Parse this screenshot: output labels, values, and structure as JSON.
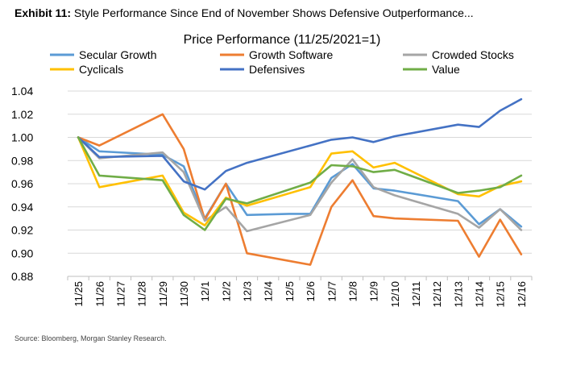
{
  "header": {
    "exhibit_label": "Exhibit 11:",
    "exhibit_title": "Style Performance Since End of November Shows Defensive Outperformance..."
  },
  "source": "Source: Bloomberg, Morgan Stanley Research.",
  "chart_data": {
    "type": "line",
    "title": "Price Performance (11/25/2021=1)",
    "xlabel": "",
    "ylabel": "",
    "ylim": [
      0.88,
      1.04
    ],
    "yticks": [
      "0.88",
      "0.90",
      "0.92",
      "0.94",
      "0.96",
      "0.98",
      "1.00",
      "1.02",
      "1.04"
    ],
    "ytick_values": [
      0.88,
      0.9,
      0.92,
      0.94,
      0.96,
      0.98,
      1.0,
      1.02,
      1.04
    ],
    "categories": [
      "11/25",
      "11/26",
      "11/27",
      "11/28",
      "11/29",
      "11/30",
      "12/1",
      "12/2",
      "12/3",
      "12/4",
      "12/5",
      "12/6",
      "12/7",
      "12/8",
      "12/9",
      "12/10",
      "12/11",
      "12/12",
      "12/13",
      "12/14",
      "12/15",
      "12/16"
    ],
    "legend_position": "top",
    "series": [
      {
        "name": "Secular Growth",
        "color": "#5B9BD5",
        "points": [
          [
            0,
            1.0
          ],
          [
            1,
            0.988
          ],
          [
            4,
            0.985
          ],
          [
            5,
            0.975
          ],
          [
            6,
            0.93
          ],
          [
            7,
            0.96
          ],
          [
            8,
            0.933
          ],
          [
            10,
            0.934
          ],
          [
            11,
            0.934
          ],
          [
            12,
            0.965
          ],
          [
            13,
            0.977
          ],
          [
            14,
            0.956
          ],
          [
            15,
            0.954
          ],
          [
            18,
            0.945
          ],
          [
            19,
            0.925
          ],
          [
            20,
            0.938
          ],
          [
            21,
            0.923
          ]
        ]
      },
      {
        "name": "Growth Software",
        "color": "#ED7D31",
        "points": [
          [
            0,
            1.0
          ],
          [
            1,
            0.993
          ],
          [
            4,
            1.02
          ],
          [
            5,
            0.99
          ],
          [
            6,
            0.929
          ],
          [
            7,
            0.96
          ],
          [
            8,
            0.9
          ],
          [
            11,
            0.89
          ],
          [
            12,
            0.94
          ],
          [
            13,
            0.963
          ],
          [
            14,
            0.932
          ],
          [
            15,
            0.93
          ],
          [
            18,
            0.928
          ],
          [
            19,
            0.897
          ],
          [
            20,
            0.929
          ],
          [
            21,
            0.899
          ]
        ]
      },
      {
        "name": "Crowded Stocks",
        "color": "#A5A5A5",
        "points": [
          [
            0,
            1.0
          ],
          [
            1,
            0.982
          ],
          [
            4,
            0.987
          ],
          [
            5,
            0.97
          ],
          [
            6,
            0.928
          ],
          [
            7,
            0.94
          ],
          [
            8,
            0.919
          ],
          [
            11,
            0.933
          ],
          [
            12,
            0.961
          ],
          [
            13,
            0.981
          ],
          [
            14,
            0.957
          ],
          [
            15,
            0.95
          ],
          [
            18,
            0.934
          ],
          [
            19,
            0.922
          ],
          [
            20,
            0.938
          ],
          [
            21,
            0.92
          ]
        ]
      },
      {
        "name": "Cyclicals",
        "color": "#FFC000",
        "points": [
          [
            0,
            1.0
          ],
          [
            1,
            0.957
          ],
          [
            4,
            0.967
          ],
          [
            5,
            0.935
          ],
          [
            6,
            0.924
          ],
          [
            7,
            0.948
          ],
          [
            8,
            0.941
          ],
          [
            11,
            0.957
          ],
          [
            12,
            0.986
          ],
          [
            13,
            0.988
          ],
          [
            14,
            0.974
          ],
          [
            15,
            0.978
          ],
          [
            18,
            0.951
          ],
          [
            19,
            0.949
          ],
          [
            20,
            0.958
          ],
          [
            21,
            0.962
          ]
        ]
      },
      {
        "name": "Defensives",
        "color": "#4472C4",
        "points": [
          [
            0,
            1.0
          ],
          [
            1,
            0.983
          ],
          [
            4,
            0.984
          ],
          [
            5,
            0.962
          ],
          [
            6,
            0.955
          ],
          [
            7,
            0.971
          ],
          [
            8,
            0.978
          ],
          [
            11,
            0.993
          ],
          [
            12,
            0.998
          ],
          [
            13,
            1.0
          ],
          [
            14,
            0.996
          ],
          [
            15,
            1.001
          ],
          [
            18,
            1.011
          ],
          [
            19,
            1.009
          ],
          [
            20,
            1.023
          ],
          [
            21,
            1.033
          ]
        ]
      },
      {
        "name": "Value",
        "color": "#70AD47",
        "points": [
          [
            0,
            1.0
          ],
          [
            1,
            0.967
          ],
          [
            4,
            0.963
          ],
          [
            5,
            0.933
          ],
          [
            6,
            0.92
          ],
          [
            7,
            0.947
          ],
          [
            8,
            0.943
          ],
          [
            11,
            0.961
          ],
          [
            12,
            0.976
          ],
          [
            13,
            0.975
          ],
          [
            14,
            0.97
          ],
          [
            15,
            0.972
          ],
          [
            18,
            0.952
          ],
          [
            19,
            0.954
          ],
          [
            20,
            0.957
          ],
          [
            21,
            0.967
          ]
        ]
      }
    ]
  }
}
